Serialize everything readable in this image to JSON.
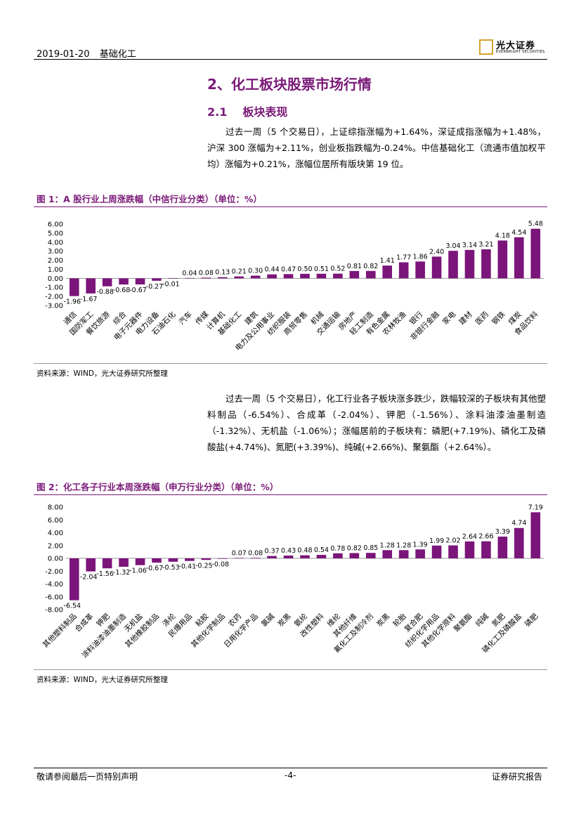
{
  "header": {
    "date": "2019-01-20",
    "sector": "基础化工",
    "logo_cn": "光大证券",
    "logo_en": "EVERBRIGHT SECURITIES"
  },
  "section_title": "2、化工板块股票市场行情",
  "subsection": {
    "number": "2.1",
    "title": "板块表现"
  },
  "para1": "过去一周（5 个交易日），上证综指涨幅为+1.64%，深证成指涨幅为+1.48%，沪深 300 涨幅为+2.11%，创业板指跌幅为-0.24%。中信基础化工（流通市值加权平均）涨幅为+0.21%，涨幅位居所有版块第 19 位。",
  "para2": "过去一周（5 个交易日），化工行业各子板块涨多跌少，跌幅较深的子板块有其他塑料制品（-6.54%）、合成革（-2.04%）、钾肥（-1.56%）、涂料油漆油墨制造（-1.32%）、无机盐（-1.06%）；涨幅居前的子板块有：磷肥(+7.19%)、磷化工及磷酸盐(+4.74%)、氮肥(+3.39%)、纯碱(+2.66%)、聚氨酯（+2.64%）。",
  "fig1": {
    "title": "图 1：A 股行业上周涨跌幅（中信行业分类）（单位：%）",
    "source": "资料来源：WIND，光大证券研究所整理"
  },
  "fig2": {
    "title": "图 2：化工各子行业本周涨跌幅（申万行业分类）（单位：%）",
    "source": "资料来源：WIND，光大证券研究所整理"
  },
  "footer": {
    "left": "敬请参阅最后一页特别声明",
    "center": "-4-",
    "right": "证券研究报告"
  },
  "colors": {
    "bar": "#7b157a",
    "accent": "#7a1a78",
    "logo": "#d4a22a"
  },
  "chart_data": [
    {
      "type": "bar",
      "categories": [
        "通信",
        "国防军工",
        "餐饮旅游",
        "综合",
        "电子元器件",
        "电力设备",
        "石油石化",
        "汽车",
        "传媒",
        "计算机",
        "基础化工",
        "建筑",
        "电力及公用事业",
        "纺织服装",
        "商贸零售",
        "机械",
        "交通运输",
        "房地产",
        "轻工制造",
        "有色金属",
        "农林牧渔",
        "银行",
        "非银行金融",
        "家电",
        "建材",
        "医药",
        "钢铁",
        "煤炭",
        "食品饮料"
      ],
      "values": [
        -1.96,
        -1.67,
        -0.88,
        -0.68,
        -0.67,
        -0.27,
        -0.01,
        0.04,
        0.08,
        0.13,
        0.21,
        0.3,
        0.44,
        0.47,
        0.5,
        0.51,
        0.52,
        0.81,
        0.82,
        1.41,
        1.77,
        1.86,
        2.4,
        3.04,
        3.14,
        3.21,
        4.18,
        4.54,
        5.48
      ],
      "yticks": [
        "-3.00",
        "-2.00",
        "-1.00",
        "0.00",
        "1.00",
        "2.00",
        "3.00",
        "4.00",
        "5.00",
        "6.00"
      ],
      "ylim": [
        -3,
        6
      ]
    },
    {
      "type": "bar",
      "categories": [
        "其他塑料制品",
        "合成革",
        "钾肥",
        "涂料油漆油墨制造",
        "无机盐",
        "其他橡胶制品",
        "涤纶",
        "民爆用品",
        "粘胶",
        "其他化学制品",
        "农药",
        "日用化学产品",
        "氯碱",
        "炭黑",
        "氨纶",
        "改性塑料",
        "维纶",
        "其他纤维",
        "氟化工及制冷剂",
        "炭黑",
        "轮胎",
        "复合肥",
        "纺织化学用品",
        "其他化学原料",
        "聚氨酯",
        "纯碱",
        "氮肥",
        "磷化工及磷酸盐",
        "磷肥"
      ],
      "values": [
        -6.54,
        -2.04,
        -1.56,
        -1.32,
        -1.06,
        -0.67,
        -0.53,
        -0.41,
        -0.25,
        -0.08,
        0.07,
        0.08,
        0.37,
        0.43,
        0.48,
        0.54,
        0.78,
        0.82,
        0.85,
        1.28,
        1.28,
        1.39,
        1.99,
        2.02,
        2.64,
        2.66,
        3.39,
        4.74,
        7.19
      ],
      "yticks": [
        "-8.00",
        "-6.00",
        "-4.00",
        "-2.00",
        "0.00",
        "2.00",
        "4.00",
        "6.00",
        "8.00"
      ],
      "ylim": [
        -8,
        8
      ]
    }
  ]
}
